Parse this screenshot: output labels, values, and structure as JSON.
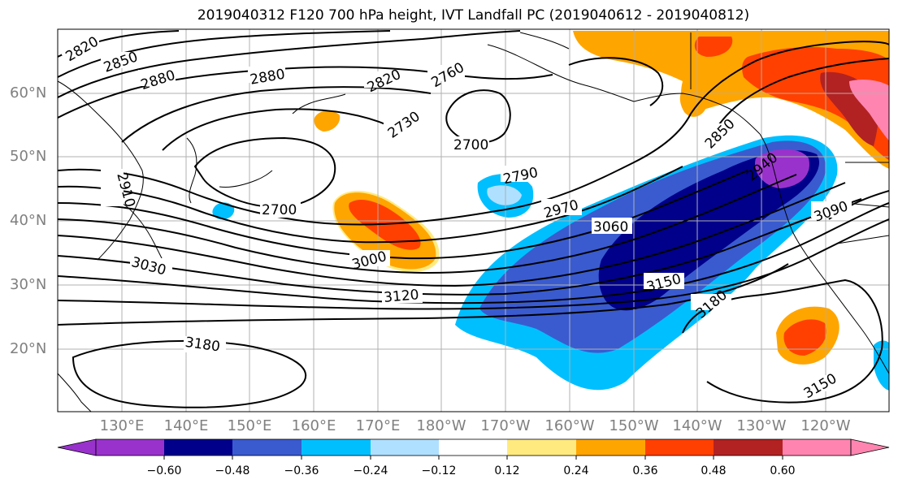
{
  "title": "2019040312 F120 700 hPa height, IVT Landfall PC (2019040612 - 2019040812)",
  "latitude_labels": [
    "60°N",
    "50°N",
    "40°N",
    "30°N",
    "20°N"
  ],
  "longitude_labels": [
    "130°E",
    "140°E",
    "150°E",
    "160°E",
    "170°E",
    "180°W",
    "170°W",
    "160°W",
    "150°W",
    "140°W",
    "130°W",
    "120°W"
  ],
  "contour_labels": [
    "2820",
    "2850",
    "2880",
    "2880",
    "2820",
    "2760",
    "2730",
    "2700",
    "2910",
    "2700",
    "2790",
    "2970",
    "3060",
    "3000",
    "3030",
    "3120",
    "3150",
    "3180",
    "3180",
    "2850",
    "2940",
    "3090",
    "3150"
  ],
  "colorbar": {
    "ticks": [
      "−0.60",
      "−0.48",
      "−0.36",
      "−0.24",
      "−0.12",
      "0.12",
      "0.24",
      "0.36",
      "0.48",
      "0.60"
    ],
    "colors": [
      "#9932CC",
      "#00008B",
      "#3A5BCF",
      "#00BFFF",
      "#B0E0FF",
      "#FFFFFF",
      "#FFEA80",
      "#FFA500",
      "#FF4000",
      "#B22222",
      "#FF85B0"
    ]
  }
}
